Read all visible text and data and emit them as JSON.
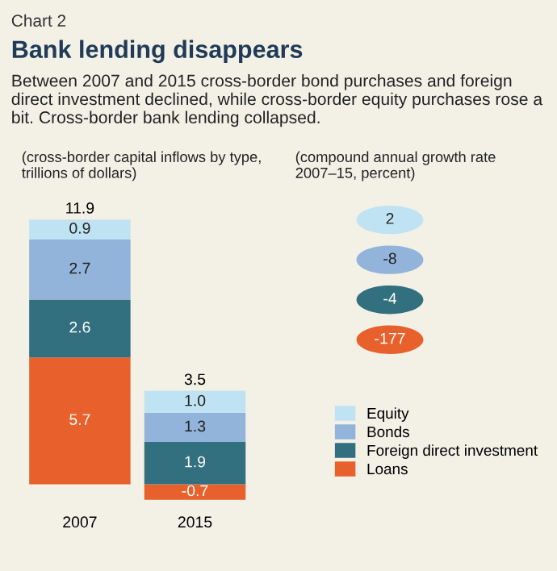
{
  "chart_data": {
    "type": "bar",
    "stacked": true,
    "title": "Bank lending disappears",
    "subtitle": "Between 2007 and 2015 cross-border bond purchases and foreign direct investment declined, while cross-border equity purchases rose a bit. Cross-border bank lending collapsed.",
    "ylabel": "(cross-border capital inflows by type, trillions of dollars)",
    "y2label": "(compound annual growth rate 2007–15, percent)",
    "annotations": [
      "Chart 2",
      "2",
      "-8",
      "-4",
      "-177"
    ],
    "categories": [
      "2007",
      "2015"
    ],
    "series": [
      {
        "name": "Loans",
        "color": "#e8612c",
        "values": [
          5.7,
          -0.7
        ],
        "value_labels": [
          "5.7",
          "-0.7"
        ]
      },
      {
        "name": "Foreign direct investment",
        "color": "#33707f",
        "values": [
          2.6,
          1.9
        ],
        "value_labels": [
          "2.6",
          "1.9"
        ]
      },
      {
        "name": "Bonds",
        "color": "#92b3da",
        "values": [
          2.7,
          1.3
        ],
        "value_labels": [
          "2.7",
          "1.3"
        ]
      },
      {
        "name": "Equity",
        "color": "#bfe3f2",
        "values": [
          0.9,
          1.0
        ],
        "value_labels": [
          "0.9",
          "1.0"
        ]
      }
    ],
    "totals": [
      "11.9",
      "3.5"
    ],
    "legend": "right",
    "grid": false
  }
}
